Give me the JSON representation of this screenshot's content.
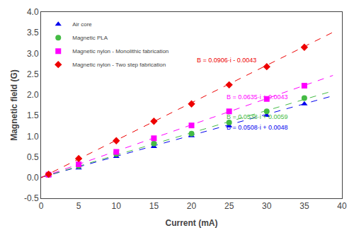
{
  "chart_data": {
    "type": "scatter",
    "xlabel": "Current (mA)",
    "ylabel": "Magnetic field (G)",
    "xlim": [
      0,
      40
    ],
    "xticks": [
      0,
      5,
      10,
      15,
      20,
      25,
      30,
      35,
      40
    ],
    "ylim": [
      -0.5,
      4.0
    ],
    "yticks": [
      -0.5,
      {
        "value": 0,
        "label": "0.0"
      },
      0.5,
      {
        "value": 1,
        "label": "1.0"
      },
      1.5,
      {
        "value": 2,
        "label": "2.0"
      },
      2.5,
      {
        "value": 3,
        "label": "3.0"
      },
      3.5,
      {
        "value": 4,
        "label": "4.0"
      }
    ],
    "grid": false,
    "legend": "upper left",
    "series": [
      {
        "name": "Air core",
        "color": "#0000EE",
        "marker": "triangle",
        "x": [
          1,
          5,
          10,
          15,
          20,
          25,
          30,
          35
        ],
        "values": [
          0.06,
          0.23,
          0.51,
          0.75,
          1.01,
          1.25,
          1.5,
          1.78
        ],
        "fit": {
          "x": [
            0,
            38.8
          ],
          "values": [
            0.0048,
            1.97584
          ],
          "line_style": "dashed",
          "color": "#0000EE"
        }
      },
      {
        "name": "Magnetic PLA",
        "color": "#44BB44",
        "marker": "circle",
        "x": [
          1,
          5,
          10,
          15,
          20,
          25,
          30,
          35
        ],
        "values": [
          0.07,
          0.28,
          0.57,
          0.82,
          1.06,
          1.33,
          1.6,
          1.92
        ],
        "fit": {
          "x": [
            0,
            38.8
          ],
          "values": [
            0.0059,
            2.09334
          ],
          "line_style": "dashed",
          "color": "#44BB44"
        }
      },
      {
        "name": "Magnetic nylon - Monolithic fabrication",
        "color": "#FF00FF",
        "marker": "square",
        "x": [
          1,
          5,
          10,
          15,
          20,
          25,
          30,
          35
        ],
        "values": [
          0.07,
          0.32,
          0.62,
          0.95,
          1.26,
          1.6,
          1.9,
          2.22
        ],
        "fit": {
          "x": [
            0,
            38.8
          ],
          "values": [
            0.0043,
            2.4681
          ],
          "line_style": "dashed",
          "color": "#FF00FF"
        }
      },
      {
        "name": "Magnetic nylon - Two step fabrication",
        "color": "#EE0000",
        "marker": "diamond",
        "x": [
          1,
          5,
          10,
          15,
          20,
          25,
          30,
          35
        ],
        "values": [
          0.08,
          0.46,
          0.89,
          1.36,
          1.78,
          2.24,
          2.68,
          3.15
        ],
        "fit": {
          "x": [
            0,
            38.8
          ],
          "values": [
            -0.0043,
            3.51098
          ],
          "line_style": "dashed",
          "color": "#EE0000"
        }
      }
    ],
    "annotations": [
      {
        "text": "B = 0.0508·i + 0.0048",
        "x": 24.5,
        "y": 1.09,
        "color": "#0000EE"
      },
      {
        "text": "B = 0.0538·i + 0.0059",
        "x": 24.5,
        "y": 1.35,
        "color": "#44BB44"
      },
      {
        "text": "B = 0.0635·i + 0.0043",
        "x": 24.5,
        "y": 1.83,
        "color": "#FF00FF"
      },
      {
        "text": "B = 0.0906·i - 0.0043",
        "x": 20.5,
        "y": 2.72,
        "color": "#EE0000"
      }
    ]
  }
}
